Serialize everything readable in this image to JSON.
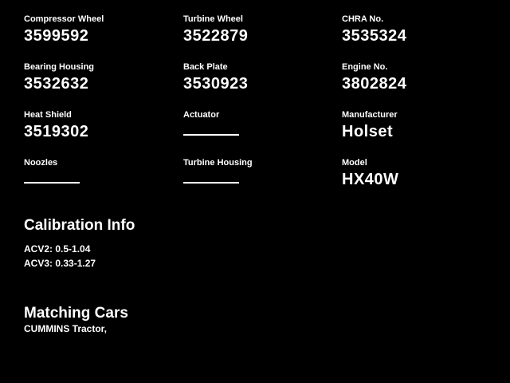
{
  "colors": {
    "background": "#000000",
    "text": "#ffffff"
  },
  "fields": [
    {
      "label": "Compressor Wheel",
      "value": "3599592"
    },
    {
      "label": "Turbine Wheel",
      "value": "3522879"
    },
    {
      "label": "CHRA No.",
      "value": "3535324"
    },
    {
      "label": "Bearing Housing",
      "value": "3532632"
    },
    {
      "label": "Back Plate",
      "value": "3530923"
    },
    {
      "label": "Engine No.",
      "value": "3802824"
    },
    {
      "label": "Heat Shield",
      "value": "3519302"
    },
    {
      "label": "Actuator",
      "value": ""
    },
    {
      "label": "Manufacturer",
      "value": "Holset"
    },
    {
      "label": "Noozles",
      "value": ""
    },
    {
      "label": "Turbine Housing",
      "value": ""
    },
    {
      "label": "Model",
      "value": "HX40W"
    }
  ],
  "calibration": {
    "title": "Calibration Info",
    "lines": {
      "acv2": "ACV2: 0.5-1.04",
      "acv3": "ACV3: 0.33-1.27"
    }
  },
  "matching_cars": {
    "title": "Matching Cars",
    "text": "CUMMINS Tractor,"
  }
}
